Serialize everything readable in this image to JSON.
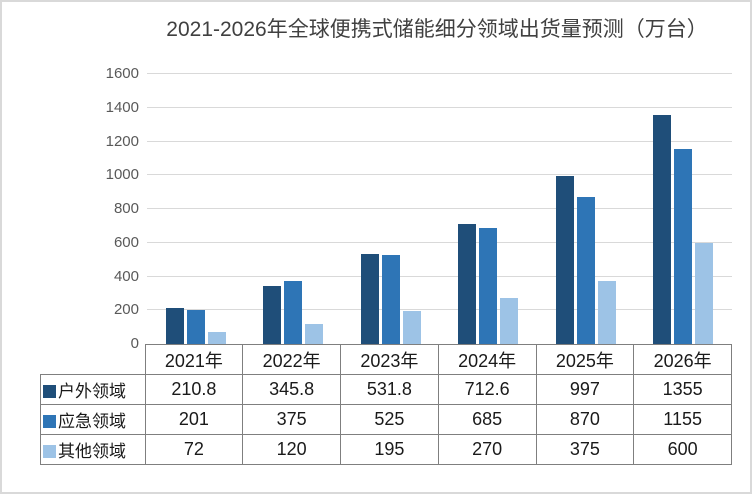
{
  "title": "2021-2026年全球便携式储能细分领域出货量预测（万台）",
  "colors": {
    "series_outdoor": "#1F4E79",
    "series_emergency": "#2E75B6",
    "series_other": "#9DC3E6",
    "gridline": "#D9D9D9",
    "axis_text": "#595959",
    "title_text": "#404040",
    "table_border": "#7F7F7F",
    "frame_border": "#D9D9D9"
  },
  "chart_data": {
    "type": "bar",
    "title": "2021-2026年全球便携式储能细分领域出货量预测（万台）",
    "categories": [
      "2021年",
      "2022年",
      "2023年",
      "2024年",
      "2025年",
      "2026年"
    ],
    "series": [
      {
        "name": "户外领域",
        "color": "#1F4E79",
        "values": [
          210.8,
          345.8,
          531.8,
          712.6,
          997,
          1355
        ]
      },
      {
        "name": "应急领域",
        "color": "#2E75B6",
        "values": [
          201,
          375,
          525,
          685,
          870,
          1155
        ]
      },
      {
        "name": "其他领域",
        "color": "#9DC3E6",
        "values": [
          72,
          120,
          195,
          270,
          375,
          600
        ]
      }
    ],
    "xlabel": "",
    "ylabel": "",
    "ylim": [
      0,
      1600
    ],
    "yticks": [
      0,
      200,
      400,
      600,
      800,
      1000,
      1200,
      1400,
      1600
    ],
    "grid": true,
    "legend_position": "data-table-row-headers",
    "data_table_shown": true
  }
}
